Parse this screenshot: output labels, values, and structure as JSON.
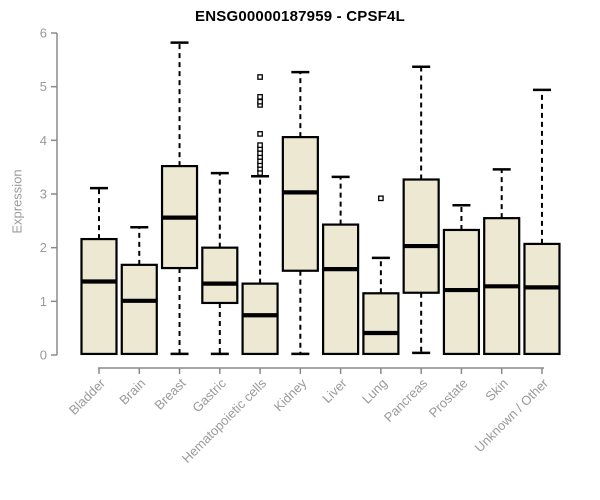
{
  "chart_data": {
    "type": "boxplot",
    "title": "ENSG00000187959 - CPSF4L",
    "ylabel": "Expression",
    "xlabel": "",
    "ylim": [
      0,
      6
    ],
    "yticks": [
      0,
      1,
      2,
      3,
      4,
      5,
      6
    ],
    "grid": false,
    "legend": "none",
    "categories": [
      "Bladder",
      "Brain",
      "Breast",
      "Gastric",
      "Hematopoietic cells",
      "Kidney",
      "Liver",
      "Lung",
      "Pancreas",
      "Prostate",
      "Skin",
      "Unknown / Other"
    ],
    "series": [
      {
        "name": "Bladder",
        "low": 0.02,
        "q1": 0.02,
        "median": 1.37,
        "q3": 2.16,
        "high": 3.11,
        "outliers": []
      },
      {
        "name": "Brain",
        "low": 0.02,
        "q1": 0.02,
        "median": 1.01,
        "q3": 1.68,
        "high": 2.38,
        "outliers": []
      },
      {
        "name": "Breast",
        "low": 0.02,
        "q1": 1.62,
        "median": 2.56,
        "q3": 3.52,
        "high": 5.82,
        "outliers": []
      },
      {
        "name": "Gastric",
        "low": 0.02,
        "q1": 0.97,
        "median": 1.33,
        "q3": 2.0,
        "high": 3.39,
        "outliers": []
      },
      {
        "name": "Hematopoietic cells",
        "low": 0.02,
        "q1": 0.02,
        "median": 0.74,
        "q3": 1.33,
        "high": 3.33,
        "outliers": [
          3.39,
          3.47,
          3.54,
          3.61,
          3.69,
          3.76,
          3.84,
          3.91,
          4.12,
          4.66,
          4.72,
          4.81,
          5.18
        ]
      },
      {
        "name": "Kidney",
        "low": 0.02,
        "q1": 1.57,
        "median": 3.03,
        "q3": 4.06,
        "high": 5.27,
        "outliers": []
      },
      {
        "name": "Liver",
        "low": 0.02,
        "q1": 0.02,
        "median": 1.6,
        "q3": 2.43,
        "high": 3.32,
        "outliers": []
      },
      {
        "name": "Lung",
        "low": 0.02,
        "q1": 0.02,
        "median": 0.41,
        "q3": 1.15,
        "high": 1.81,
        "outliers": [
          2.92
        ]
      },
      {
        "name": "Pancreas",
        "low": 0.04,
        "q1": 1.16,
        "median": 2.03,
        "q3": 3.27,
        "high": 5.37,
        "outliers": []
      },
      {
        "name": "Prostate",
        "low": 0.02,
        "q1": 0.02,
        "median": 1.21,
        "q3": 2.33,
        "high": 2.79,
        "outliers": []
      },
      {
        "name": "Skin",
        "low": 0.02,
        "q1": 0.02,
        "median": 1.28,
        "q3": 2.55,
        "high": 3.46,
        "outliers": []
      },
      {
        "name": "Unknown / Other",
        "low": 0.02,
        "q1": 0.02,
        "median": 1.26,
        "q3": 2.07,
        "high": 4.94,
        "outliers": []
      }
    ],
    "colors": {
      "box_fill": "#EDE8D1",
      "box_border": "#000000",
      "median": "#000000",
      "whisker": "#000000",
      "outlier_fill": "#ffffff",
      "axis": "#8a8a8a",
      "tick_label": "#9a9a9a",
      "title": "#000000",
      "background": "#ffffff"
    }
  }
}
